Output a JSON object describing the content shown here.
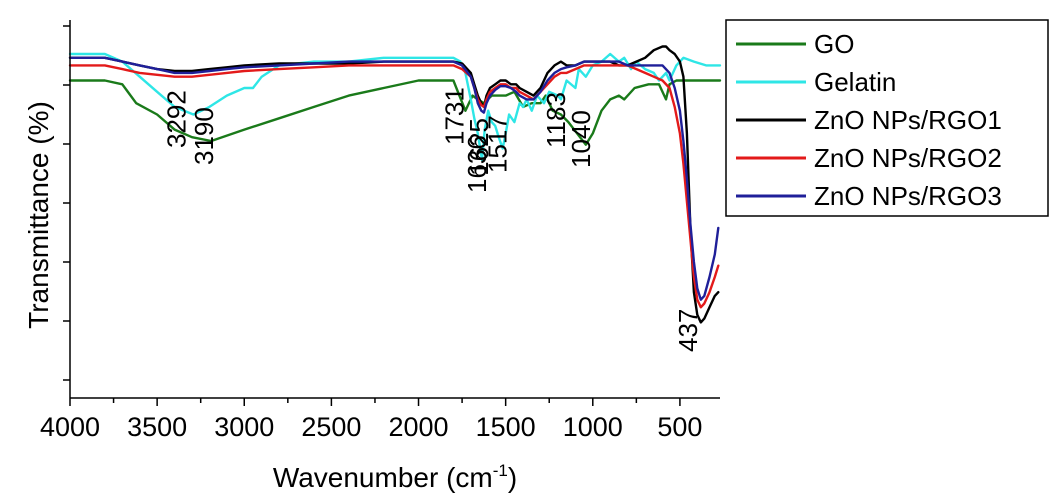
{
  "chart_data": {
    "type": "line",
    "xlabel": "Wavenumber (cm",
    "xlabel_sup": "-1",
    "xlabel_close": ")",
    "ylabel": "Transmittance (%)",
    "xlim": [
      4000,
      270
    ],
    "ylim": [
      0,
      100
    ],
    "x_reversed": true,
    "x_ticks": [
      4000,
      3500,
      3000,
      2500,
      2000,
      1500,
      1000,
      500
    ],
    "y_ticks_count": 7,
    "y_tick_labels_shown": false,
    "grid": false,
    "legend_position": "top-right",
    "series": [
      {
        "name": "GO",
        "color": "#1a7a1a",
        "points": [
          [
            4000,
            84
          ],
          [
            3800,
            84
          ],
          [
            3700,
            83
          ],
          [
            3620,
            78
          ],
          [
            3500,
            75
          ],
          [
            3400,
            71
          ],
          [
            3300,
            69
          ],
          [
            3190,
            68
          ],
          [
            3000,
            71
          ],
          [
            2800,
            74
          ],
          [
            2600,
            77
          ],
          [
            2400,
            80
          ],
          [
            2200,
            82
          ],
          [
            2000,
            84
          ],
          [
            1800,
            84
          ],
          [
            1731,
            76
          ],
          [
            1690,
            80
          ],
          [
            1660,
            79
          ],
          [
            1625,
            78
          ],
          [
            1580,
            80
          ],
          [
            1500,
            80
          ],
          [
            1450,
            81
          ],
          [
            1400,
            77
          ],
          [
            1350,
            78
          ],
          [
            1300,
            78
          ],
          [
            1270,
            80
          ],
          [
            1230,
            76
          ],
          [
            1183,
            75
          ],
          [
            1140,
            73
          ],
          [
            1090,
            70
          ],
          [
            1040,
            67
          ],
          [
            1000,
            70
          ],
          [
            950,
            76
          ],
          [
            900,
            79
          ],
          [
            850,
            80
          ],
          [
            820,
            79
          ],
          [
            760,
            82
          ],
          [
            680,
            83
          ],
          [
            620,
            83
          ],
          [
            580,
            79
          ],
          [
            560,
            83
          ],
          [
            520,
            84
          ],
          [
            400,
            84
          ],
          [
            270,
            84
          ]
        ]
      },
      {
        "name": "Gelatin",
        "color": "#2ee6e6",
        "points": [
          [
            4000,
            91
          ],
          [
            3800,
            91
          ],
          [
            3700,
            89
          ],
          [
            3600,
            85
          ],
          [
            3500,
            81
          ],
          [
            3400,
            77
          ],
          [
            3292,
            75
          ],
          [
            3200,
            77
          ],
          [
            3100,
            80
          ],
          [
            3000,
            82
          ],
          [
            2950,
            82
          ],
          [
            2900,
            85
          ],
          [
            2800,
            88
          ],
          [
            2600,
            89
          ],
          [
            2400,
            89
          ],
          [
            2200,
            90
          ],
          [
            2000,
            90
          ],
          [
            1800,
            90
          ],
          [
            1760,
            89
          ],
          [
            1731,
            86
          ],
          [
            1700,
            79
          ],
          [
            1680,
            74
          ],
          [
            1660,
            70
          ],
          [
            1636,
            63
          ],
          [
            1620,
            71
          ],
          [
            1600,
            76
          ],
          [
            1580,
            73
          ],
          [
            1560,
            72
          ],
          [
            1540,
            69
          ],
          [
            1517,
            66
          ],
          [
            1500,
            70
          ],
          [
            1480,
            75
          ],
          [
            1450,
            73
          ],
          [
            1420,
            78
          ],
          [
            1400,
            77
          ],
          [
            1380,
            79
          ],
          [
            1350,
            76
          ],
          [
            1320,
            80
          ],
          [
            1280,
            78
          ],
          [
            1250,
            81
          ],
          [
            1200,
            80
          ],
          [
            1183,
            79
          ],
          [
            1150,
            84
          ],
          [
            1100,
            82
          ],
          [
            1080,
            87
          ],
          [
            1040,
            85
          ],
          [
            1000,
            88
          ],
          [
            950,
            89
          ],
          [
            900,
            91
          ],
          [
            850,
            89
          ],
          [
            820,
            90
          ],
          [
            780,
            87
          ],
          [
            750,
            89
          ],
          [
            700,
            87
          ],
          [
            650,
            86
          ],
          [
            620,
            84
          ],
          [
            580,
            86
          ],
          [
            560,
            84
          ],
          [
            520,
            88
          ],
          [
            480,
            90
          ],
          [
            420,
            89
          ],
          [
            350,
            88
          ],
          [
            270,
            88
          ]
        ]
      },
      {
        "name": "ZnO NPs/RGO1",
        "color": "#000000",
        "points": [
          [
            4000,
            90
          ],
          [
            3800,
            90
          ],
          [
            3700,
            89
          ],
          [
            3600,
            88
          ],
          [
            3500,
            87
          ],
          [
            3400,
            86.5
          ],
          [
            3300,
            86.5
          ],
          [
            3200,
            87
          ],
          [
            3100,
            87.5
          ],
          [
            3000,
            88
          ],
          [
            2800,
            88.5
          ],
          [
            2600,
            88.5
          ],
          [
            2400,
            88.5
          ],
          [
            2200,
            89
          ],
          [
            2000,
            89
          ],
          [
            1800,
            89
          ],
          [
            1750,
            88.5
          ],
          [
            1700,
            86
          ],
          [
            1680,
            83
          ],
          [
            1660,
            80
          ],
          [
            1640,
            78
          ],
          [
            1625,
            77
          ],
          [
            1610,
            80
          ],
          [
            1590,
            82
          ],
          [
            1560,
            83
          ],
          [
            1530,
            84
          ],
          [
            1500,
            84
          ],
          [
            1470,
            83
          ],
          [
            1440,
            83
          ],
          [
            1420,
            82
          ],
          [
            1380,
            81
          ],
          [
            1340,
            80
          ],
          [
            1300,
            82
          ],
          [
            1260,
            86
          ],
          [
            1220,
            88
          ],
          [
            1183,
            89
          ],
          [
            1150,
            88
          ],
          [
            1100,
            88
          ],
          [
            1050,
            89
          ],
          [
            1000,
            89
          ],
          [
            950,
            89
          ],
          [
            900,
            89
          ],
          [
            850,
            88
          ],
          [
            800,
            88
          ],
          [
            750,
            89
          ],
          [
            700,
            90
          ],
          [
            650,
            92
          ],
          [
            600,
            93
          ],
          [
            580,
            93
          ],
          [
            560,
            92
          ],
          [
            530,
            91
          ],
          [
            500,
            89
          ],
          [
            480,
            85
          ],
          [
            460,
            70
          ],
          [
            440,
            45
          ],
          [
            420,
            28
          ],
          [
            400,
            22
          ],
          [
            380,
            20
          ],
          [
            360,
            21
          ],
          [
            330,
            24
          ],
          [
            300,
            27
          ],
          [
            280,
            28
          ]
        ]
      },
      {
        "name": "ZnO NPs/RGO2",
        "color": "#e31a1a",
        "points": [
          [
            4000,
            88
          ],
          [
            3800,
            88
          ],
          [
            3700,
            87
          ],
          [
            3600,
            86
          ],
          [
            3500,
            85.5
          ],
          [
            3400,
            85
          ],
          [
            3300,
            85
          ],
          [
            3200,
            85.5
          ],
          [
            3100,
            86
          ],
          [
            3000,
            86.5
          ],
          [
            2800,
            87
          ],
          [
            2600,
            87.5
          ],
          [
            2400,
            88
          ],
          [
            2200,
            88
          ],
          [
            2000,
            88
          ],
          [
            1800,
            88
          ],
          [
            1750,
            87
          ],
          [
            1700,
            85
          ],
          [
            1680,
            82
          ],
          [
            1660,
            79
          ],
          [
            1640,
            77.5
          ],
          [
            1625,
            77
          ],
          [
            1610,
            79
          ],
          [
            1590,
            81
          ],
          [
            1560,
            82
          ],
          [
            1530,
            83
          ],
          [
            1500,
            83
          ],
          [
            1470,
            82
          ],
          [
            1440,
            82
          ],
          [
            1420,
            81
          ],
          [
            1380,
            80
          ],
          [
            1340,
            79
          ],
          [
            1300,
            81
          ],
          [
            1260,
            83
          ],
          [
            1220,
            85
          ],
          [
            1183,
            86
          ],
          [
            1150,
            86
          ],
          [
            1100,
            87
          ],
          [
            1050,
            88
          ],
          [
            1000,
            88
          ],
          [
            950,
            88
          ],
          [
            900,
            88
          ],
          [
            850,
            88
          ],
          [
            800,
            88
          ],
          [
            750,
            87
          ],
          [
            700,
            86
          ],
          [
            650,
            85
          ],
          [
            600,
            84
          ],
          [
            560,
            82
          ],
          [
            530,
            77
          ],
          [
            500,
            70
          ],
          [
            480,
            62
          ],
          [
            460,
            52
          ],
          [
            440,
            42
          ],
          [
            420,
            32
          ],
          [
            400,
            26
          ],
          [
            380,
            24
          ],
          [
            360,
            25
          ],
          [
            330,
            28
          ],
          [
            300,
            32
          ],
          [
            280,
            35
          ]
        ]
      },
      {
        "name": "ZnO NPs/RGO3",
        "color": "#1f1f99",
        "points": [
          [
            4000,
            90
          ],
          [
            3800,
            90
          ],
          [
            3700,
            89
          ],
          [
            3600,
            88
          ],
          [
            3500,
            87
          ],
          [
            3400,
            86
          ],
          [
            3300,
            86
          ],
          [
            3200,
            86.5
          ],
          [
            3100,
            87
          ],
          [
            3000,
            87.5
          ],
          [
            2800,
            88
          ],
          [
            2600,
            88.5
          ],
          [
            2400,
            89
          ],
          [
            2200,
            89
          ],
          [
            2000,
            89
          ],
          [
            1800,
            89
          ],
          [
            1750,
            88
          ],
          [
            1700,
            85
          ],
          [
            1680,
            82
          ],
          [
            1660,
            78
          ],
          [
            1640,
            76
          ],
          [
            1625,
            75.5
          ],
          [
            1610,
            78
          ],
          [
            1590,
            80
          ],
          [
            1560,
            81.5
          ],
          [
            1530,
            82.5
          ],
          [
            1500,
            82.5
          ],
          [
            1470,
            82
          ],
          [
            1440,
            81
          ],
          [
            1420,
            80
          ],
          [
            1380,
            79
          ],
          [
            1340,
            79
          ],
          [
            1300,
            81
          ],
          [
            1260,
            84
          ],
          [
            1220,
            86
          ],
          [
            1183,
            87
          ],
          [
            1150,
            87.5
          ],
          [
            1100,
            88
          ],
          [
            1050,
            89
          ],
          [
            1000,
            89
          ],
          [
            950,
            89
          ],
          [
            900,
            89
          ],
          [
            850,
            89
          ],
          [
            800,
            88
          ],
          [
            750,
            88
          ],
          [
            700,
            88
          ],
          [
            650,
            88
          ],
          [
            600,
            88
          ],
          [
            560,
            86
          ],
          [
            530,
            82
          ],
          [
            500,
            76
          ],
          [
            480,
            68
          ],
          [
            460,
            58
          ],
          [
            440,
            46
          ],
          [
            420,
            36
          ],
          [
            400,
            29
          ],
          [
            380,
            26
          ],
          [
            360,
            27
          ],
          [
            330,
            32
          ],
          [
            300,
            38
          ],
          [
            280,
            45
          ]
        ]
      }
    ],
    "annotations": [
      {
        "text": "3292",
        "x": 3292
      },
      {
        "text": "3190",
        "x": 3190
      },
      {
        "text": "1731",
        "x": 1731
      },
      {
        "text": "1636",
        "x": 1636
      },
      {
        "text": "1625",
        "x": 1625
      },
      {
        "text": "1517",
        "x": 1517
      },
      {
        "text": "1183",
        "x": 1183
      },
      {
        "text": "1040",
        "x": 1040
      },
      {
        "text": "437",
        "x": 437
      }
    ]
  }
}
